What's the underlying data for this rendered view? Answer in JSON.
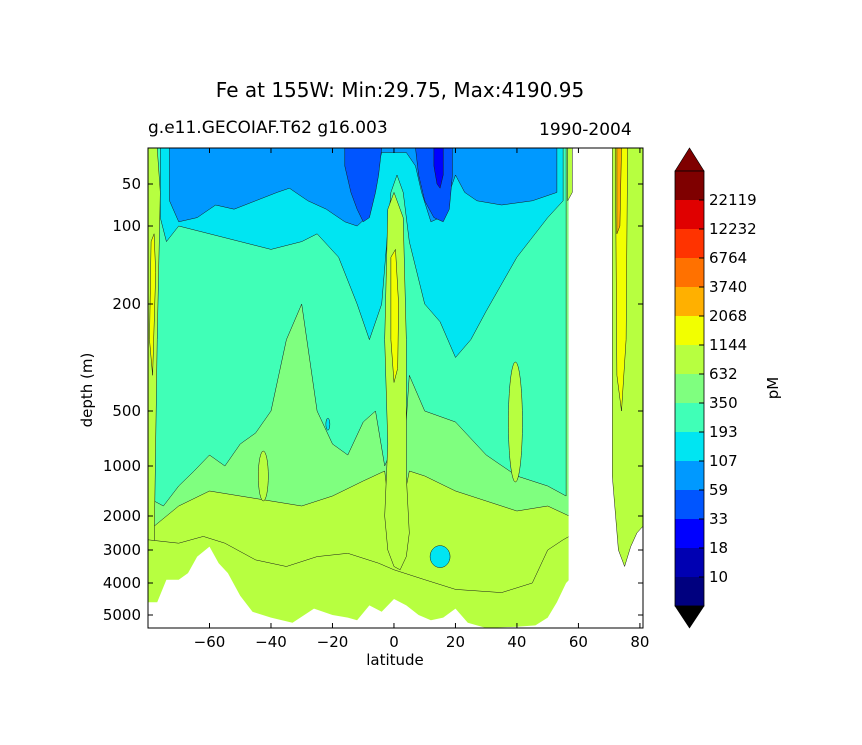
{
  "chart_data": {
    "type": "contour",
    "title": "Fe at 155W, Min:29.75, Max:4190.95",
    "title_display": "Fe at 155W: Min:29.75, Max:4190.95",
    "subtitle_left": "g.e11.GECOIAF.T62 g16.003",
    "subtitle_right": "1990-2004",
    "xlabel": "latitude",
    "ylabel": "depth (m)",
    "xlim": [
      -80,
      81
    ],
    "ylim": [
      5500,
      10
    ],
    "yscale": "log-like depth axis (inverted)",
    "x_ticks": [
      -60,
      -40,
      -20,
      0,
      20,
      40,
      60,
      80
    ],
    "y_ticks": [
      50,
      100,
      200,
      500,
      1000,
      2000,
      3000,
      4000,
      5000
    ],
    "colorbar": {
      "label": "pM",
      "extend": "both",
      "levels": [
        10,
        18,
        33,
        59,
        107,
        193,
        350,
        632,
        1144,
        2068,
        3740,
        6764,
        12232,
        22119
      ],
      "colors": [
        "#00007f",
        "#0000b2",
        "#0000ff",
        "#0055ff",
        "#0099ff",
        "#00e5f2",
        "#40ffb7",
        "#7fff7f",
        "#b7ff40",
        "#f2ff00",
        "#ffb000",
        "#ff7100",
        "#ff3300",
        "#e00000",
        "#7f0000"
      ]
    },
    "masked_region": "ocean floor below ~2700-5000 m and land gap between ~57N and ~71N",
    "approx_field_summary": [
      {
        "region": "upper 100 m, 60S-55N",
        "range_pM": "59-193"
      },
      {
        "region": "200-1000 m",
        "range_pM": "193-632"
      },
      {
        "region": "below 1000 m",
        "range_pM": "632-1144"
      },
      {
        "region": "near 0N, 100-400 m",
        "range_pM": "1144-2068"
      },
      {
        "region": "near 73N",
        "range_pM": "2068-3740"
      }
    ]
  }
}
